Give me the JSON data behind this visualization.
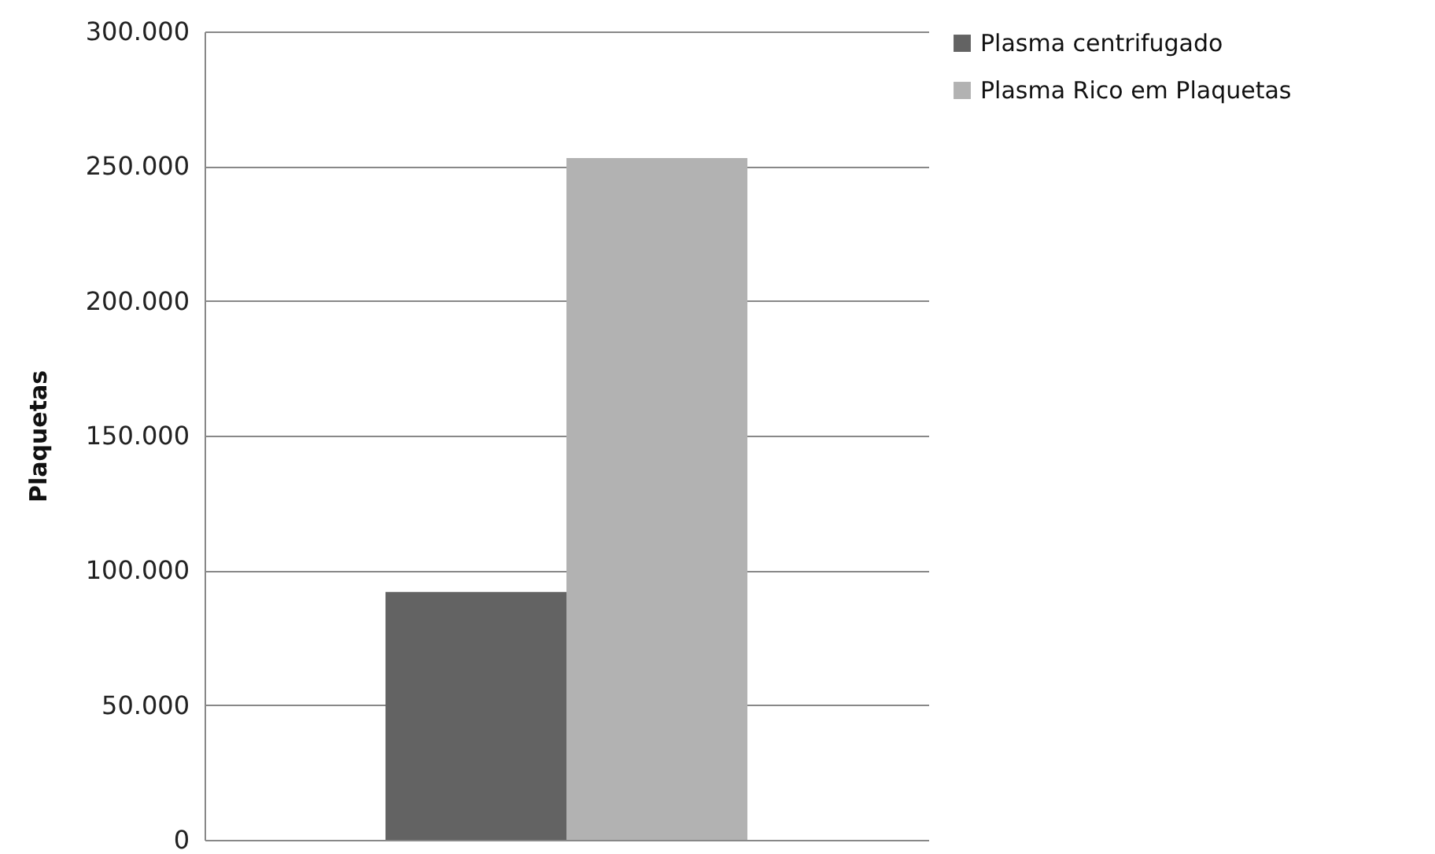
{
  "chart_data": {
    "type": "bar",
    "ylabel": "Plaquetas",
    "categories": [
      null
    ],
    "series": [
      {
        "name": "Plasma centrifugado",
        "color": "#636363",
        "values": [
          92000
        ]
      },
      {
        "name": "Plasma Rico em Plaquetas",
        "color": "#b2b2b2",
        "values": [
          253000
        ]
      }
    ],
    "ylim": [
      0,
      300000
    ],
    "yticks": [
      0,
      {
        "value": 50000,
        "label": "50.000"
      },
      {
        "value": 100000,
        "label": "100.000"
      },
      {
        "value": 150000,
        "label": "150.000"
      },
      {
        "value": 200000,
        "label": "200.000"
      },
      {
        "value": 250000,
        "label": "250.000"
      },
      {
        "value": 300000,
        "label": "300.000"
      }
    ],
    "grid": "y",
    "legend": "right"
  }
}
